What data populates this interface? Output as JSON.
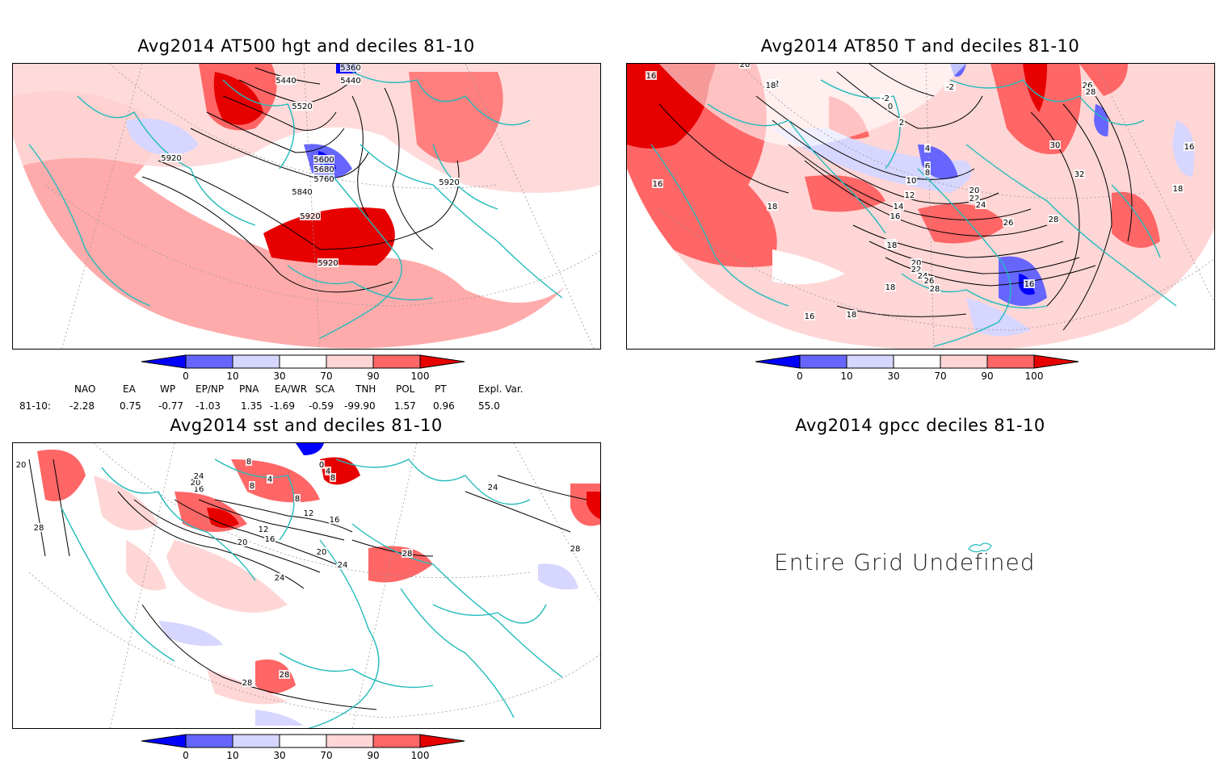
{
  "panels": [
    {
      "id": "p1",
      "title": "Avg2014 AT500 hgt and deciles 81-10"
    },
    {
      "id": "p2",
      "title": "Avg2014 AT850 T and deciles 81-10"
    },
    {
      "id": "p3",
      "title": "Avg2014 sst and deciles 81-10"
    },
    {
      "id": "p4",
      "title": "Avg2014 gpcc deciles 81-10",
      "message": "Entire Grid Undefined"
    }
  ],
  "colorbar": {
    "ticks": [
      "0",
      "10",
      "30",
      "70",
      "90",
      "100"
    ],
    "colors": [
      "#0000ff",
      "#6666ff",
      "#d6d6ff",
      "#ffffff",
      "#ffd6d6",
      "#ff6666",
      "#e60000"
    ]
  },
  "contour_labels": {
    "p1": [
      "5360",
      "5440",
      "5440",
      "5520",
      "5600",
      "5680",
      "5760",
      "5840",
      "5920",
      "5920",
      "5920",
      "5920"
    ],
    "p2": [
      "16",
      "20",
      "22",
      "18",
      "-2",
      "0",
      "-2",
      "2",
      "4",
      "6",
      "8",
      "10",
      "12",
      "14",
      "16",
      "18",
      "18",
      "20",
      "22",
      "24",
      "26",
      "28",
      "26",
      "28",
      "30",
      "32",
      "16",
      "18",
      "18",
      "16",
      "16",
      "18",
      "20",
      "22",
      "24",
      "26",
      "28",
      "18",
      "16"
    ],
    "p3": [
      "20",
      "16",
      "20",
      "24",
      "28",
      "8",
      "4",
      "8",
      "0",
      "4",
      "8",
      "8",
      "12",
      "12",
      "16",
      "16",
      "20",
      "20",
      "24",
      "24",
      "28",
      "28",
      "28",
      "24",
      "28"
    ]
  },
  "indices": {
    "headers": [
      "NAO",
      "EA",
      "WP",
      "EP/NP",
      "PNA",
      "EA/WR",
      "SCA",
      "TNH",
      "POL",
      "PT",
      "Expl. Var."
    ],
    "row_label": "81-10:",
    "values": [
      "-2.28",
      "0.75",
      "-0.77",
      "-1.03",
      "1.35",
      "-1.69",
      "-0.59",
      "-99.90",
      "1.57",
      "0.96",
      "55.0"
    ]
  }
}
